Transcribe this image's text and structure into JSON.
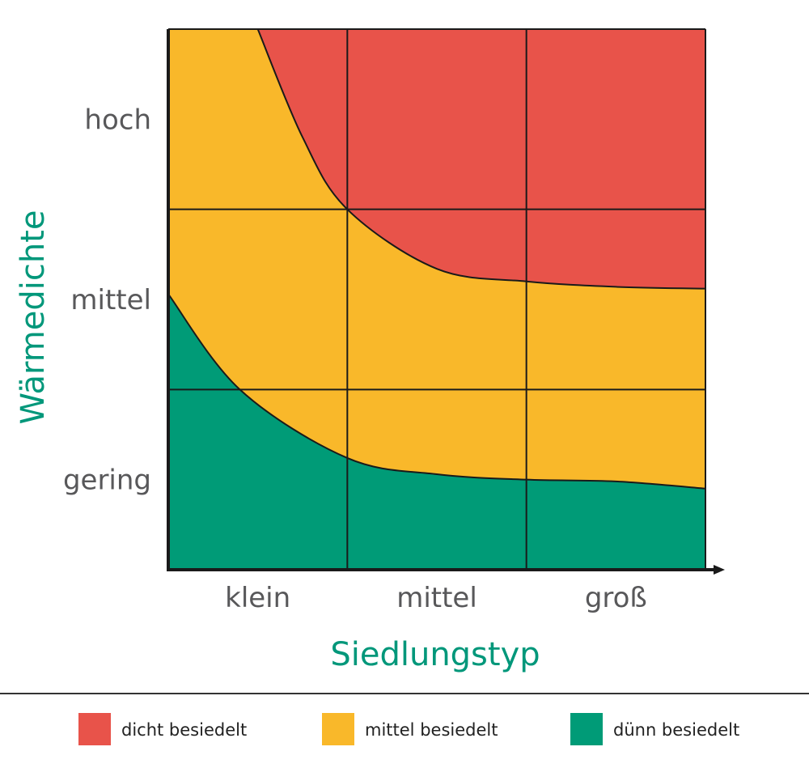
{
  "chart_data": {
    "type": "area",
    "xlabel": "Siedlungstyp",
    "ylabel": "Wärmedichte",
    "x_categories": [
      "klein",
      "mittel",
      "groß"
    ],
    "y_categories": [
      "gering",
      "mittel",
      "hoch"
    ],
    "xlim": [
      0,
      3
    ],
    "ylim": [
      0,
      3
    ],
    "grid": true,
    "legend_placement": "bottom",
    "series": [
      {
        "name": "dicht besiedelt",
        "color": "#e8534a",
        "lower_boundary": [
          [
            0.5,
            3.0
          ],
          [
            0.75,
            2.4
          ],
          [
            1.0,
            2.0
          ],
          [
            1.5,
            1.67
          ],
          [
            2.0,
            1.6
          ],
          [
            2.5,
            1.57
          ],
          [
            3.0,
            1.56
          ]
        ]
      },
      {
        "name": "mittel besiedelt",
        "color": "#f9b82a",
        "lower_boundary": [
          [
            0.0,
            1.53
          ],
          [
            0.4,
            1.0
          ],
          [
            1.0,
            0.62
          ],
          [
            1.5,
            0.53
          ],
          [
            2.0,
            0.5
          ],
          [
            2.5,
            0.49
          ],
          [
            3.0,
            0.45
          ]
        ]
      },
      {
        "name": "dünn besiedelt",
        "color": "#009b77",
        "lower_boundary": [
          [
            0.0,
            0.0
          ],
          [
            3.0,
            0.0
          ]
        ]
      }
    ],
    "axis_title_color": "#00977a"
  }
}
